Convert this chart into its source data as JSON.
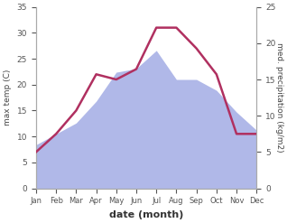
{
  "months": [
    "Jan",
    "Feb",
    "Mar",
    "Apr",
    "May",
    "Jun",
    "Jul",
    "Aug",
    "Sep",
    "Oct",
    "Nov",
    "Dec"
  ],
  "temperature": [
    7,
    10.5,
    15,
    22,
    21,
    23,
    31,
    31,
    27,
    22,
    10.5,
    10.5
  ],
  "precipitation": [
    6,
    7.5,
    9,
    12,
    16,
    16.5,
    19,
    15,
    15,
    13.5,
    10.5,
    8
  ],
  "temp_color": "#b03060",
  "precip_color": "#b0b8e8",
  "temp_ylim": [
    0,
    35
  ],
  "precip_ylim": [
    0,
    25
  ],
  "xlabel": "date (month)",
  "ylabel_left": "max temp (C)",
  "ylabel_right": "med. precipitation (kg/m2)",
  "bg_color": "#ffffff",
  "temp_linewidth": 1.8,
  "label_fontsize": 8
}
